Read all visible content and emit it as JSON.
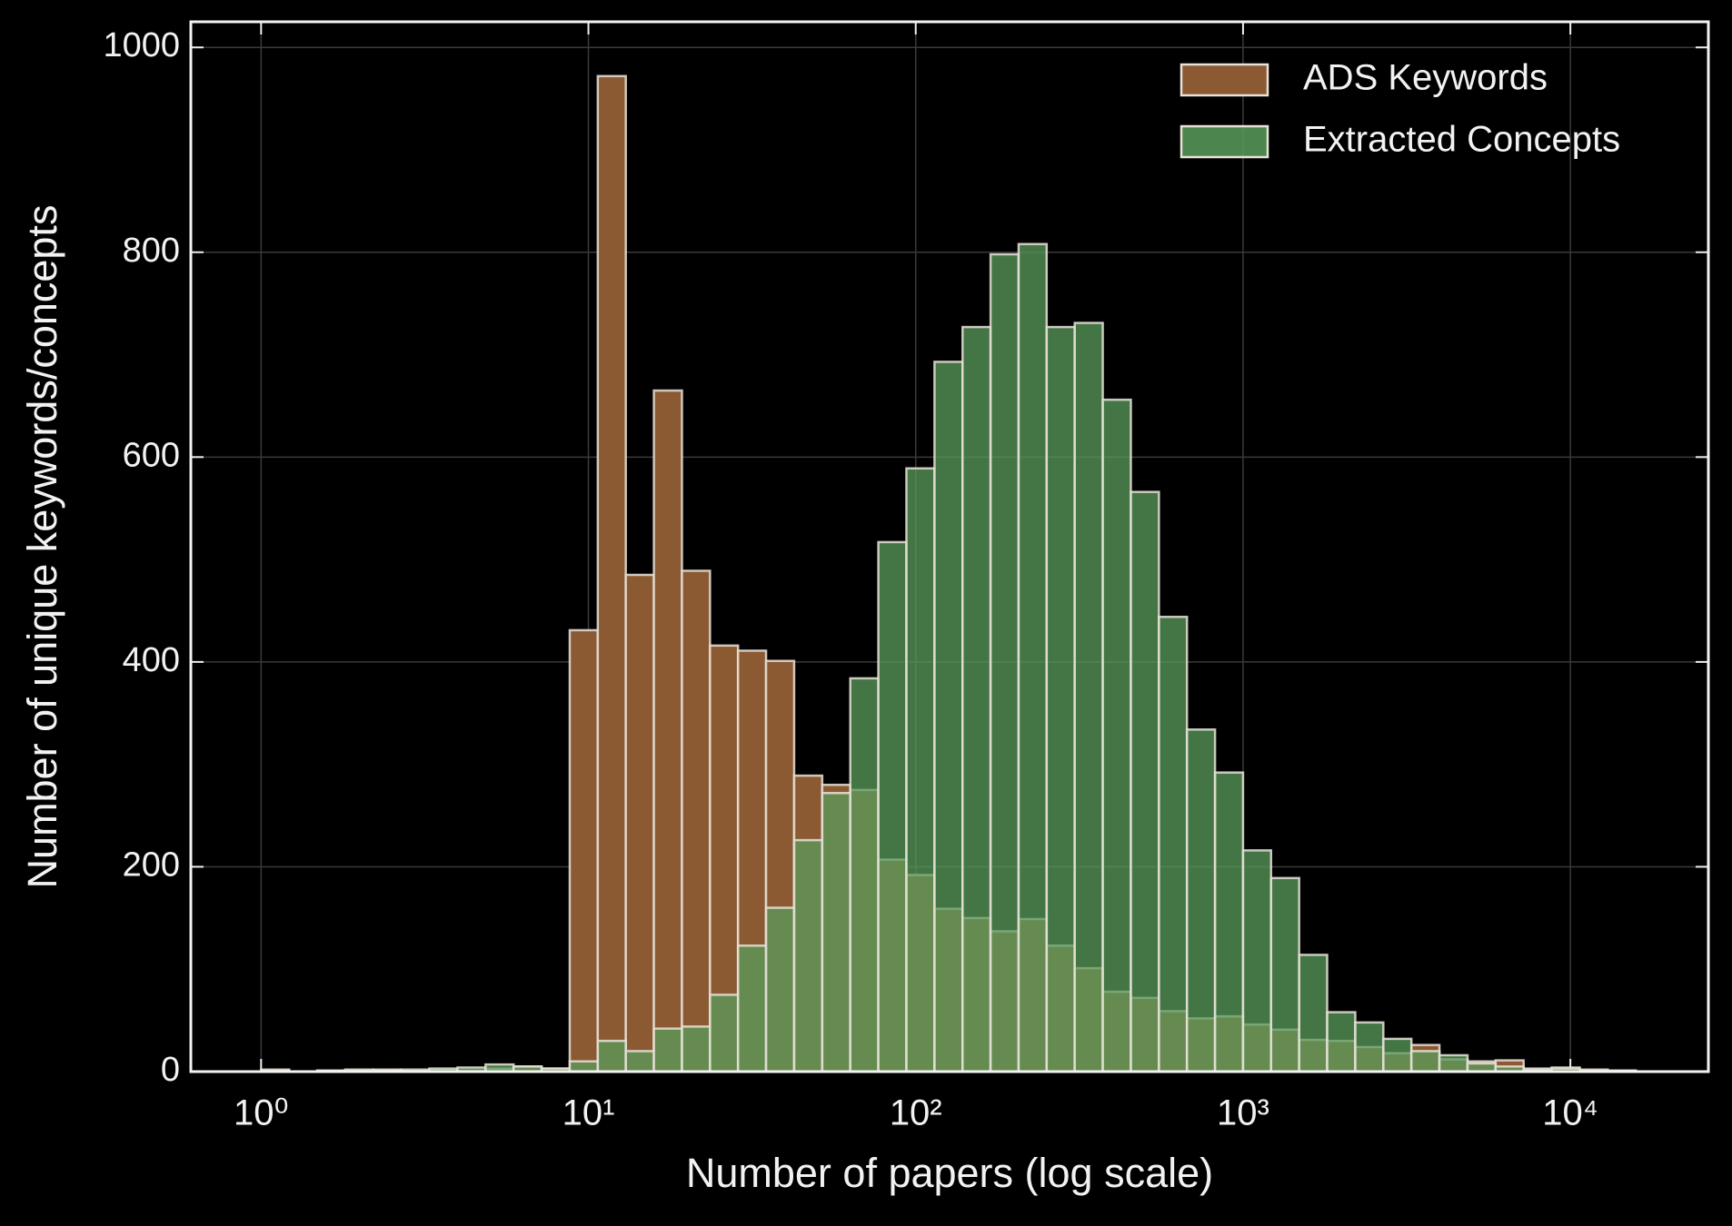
{
  "chart_data": {
    "type": "histogram",
    "x_label": "Number of papers (log scale)",
    "y_label": "Number of unique keywords/concepts",
    "x_scale": "log",
    "grid": true,
    "legend": "upper right",
    "bins": [
      1,
      1.218,
      1.484,
      1.807,
      2.202,
      2.683,
      3.268,
      3.981,
      4.85,
      5.908,
      7.197,
      8.768,
      10.68,
      13.01,
      15.85,
      19.31,
      23.52,
      28.65,
      34.9,
      42.52,
      51.8,
      63.1,
      76.87,
      93.65,
      114.1,
      139,
      169.3,
      206.2,
      251.2,
      306,
      372.8,
      454.2,
      553.3,
      674,
      821.1,
      1000,
      1218,
      1484,
      1807,
      2202,
      2683,
      3268,
      3981,
      4850,
      5908,
      7197,
      8768,
      10680,
      13010,
      15850
    ],
    "series": [
      {
        "name": "ADS Keywords",
        "color": "#8b5a33",
        "values": [
          2,
          0,
          1,
          1,
          2,
          0,
          1,
          1,
          3,
          5,
          3,
          431,
          972,
          485,
          665,
          489,
          416,
          411,
          401,
          289,
          280,
          275,
          207,
          192,
          159,
          150,
          137,
          149,
          123,
          101,
          78,
          72,
          59,
          52,
          54,
          46,
          41,
          31,
          30,
          24,
          18,
          26,
          12,
          10,
          11,
          3,
          4,
          2,
          1
        ]
      },
      {
        "name": "Extracted Concepts",
        "color": "#5a9c5c",
        "values": [
          1,
          0,
          1,
          2,
          1,
          2,
          3,
          4,
          7,
          5,
          3,
          10,
          30,
          20,
          42,
          44,
          75,
          123,
          160,
          226,
          272,
          384,
          517,
          589,
          693,
          727,
          798,
          808,
          727,
          731,
          656,
          566,
          444,
          334,
          292,
          216,
          189,
          114,
          58,
          48,
          32,
          20,
          16,
          8,
          5,
          2,
          3,
          1,
          1
        ]
      }
    ],
    "xlim": [
      0.61,
      26400
    ],
    "ylim": [
      0,
      1025
    ],
    "xticks": [
      {
        "value": 1,
        "label": "10⁰"
      },
      {
        "value": 10,
        "label": "10¹"
      },
      {
        "value": 100,
        "label": "10²"
      },
      {
        "value": 1000,
        "label": "10³"
      },
      {
        "value": 10000,
        "label": "10⁴"
      }
    ],
    "yticks": [
      0,
      200,
      400,
      600,
      800,
      1000
    ]
  }
}
